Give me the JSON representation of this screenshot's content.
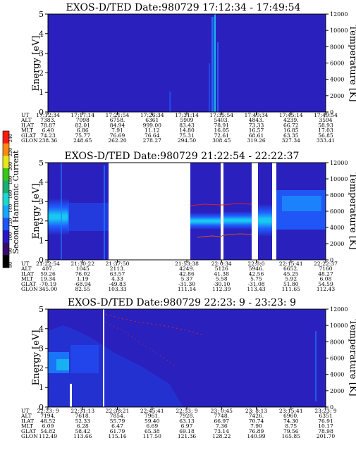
{
  "colorbar": {
    "label": "Second Harmonic Current",
    "ticks": [
      "80",
      "90",
      "100",
      "120",
      "140",
      "160",
      "180",
      "200",
      "220",
      "240"
    ],
    "colors": [
      "#000000",
      "#3a0a6e",
      "#2a18c8",
      "#1f55ff",
      "#17a8ff",
      "#19d9d0",
      "#18b070",
      "#38c818",
      "#e8e818",
      "#ff8a10",
      "#ff1a10"
    ]
  },
  "chart_data": [
    {
      "type": "heatmap",
      "title": "EXOS-D/TED   Date:980729   17:12:34 - 17:49:54",
      "ylabel": "Energy [eV]",
      "ylabel_right": "Temperature [K]",
      "ylim": [
        0,
        5
      ],
      "yticks": [
        "0",
        "1",
        "2",
        "3",
        "4",
        "5"
      ],
      "ylim_right": [
        0,
        12000
      ],
      "yticks_right": [
        "0",
        "2000",
        "4000",
        "6000",
        "8000",
        "10000",
        "12000"
      ],
      "row_labels": [
        "UT",
        "ALT",
        "ILAT",
        "MLT",
        "GLAT",
        "GLON"
      ],
      "columns": [
        {
          "pos": 0.0,
          "UT": "17:12:34",
          "ALT": "7383.",
          "ILAT": "78.87",
          "MLT": "6.40",
          "GLAT": "74.23",
          "GLON": "238.36"
        },
        {
          "pos": 0.125,
          "UT": "17:17:14",
          "ALT": "7098",
          "ILAT": "82.01",
          "MLT": "6.86",
          "GLAT": "75.77",
          "GLON": "248.65"
        },
        {
          "pos": 0.25,
          "UT": "17:21:54",
          "ALT": "6758.",
          "ILAT": "84.94",
          "MLT": "7.91",
          "GLAT": "76.69",
          "GLON": "262.20"
        },
        {
          "pos": 0.375,
          "UT": "17:26:34",
          "ALT": "6361",
          "ILAT": "999.00",
          "MLT": "11.12",
          "GLAT": "76.64",
          "GLON": "278.27"
        },
        {
          "pos": 0.5,
          "UT": "17:31:14",
          "ALT": "5909",
          "ILAT": "83.43",
          "MLT": "14.80",
          "GLAT": "75.31",
          "GLON": "294.50"
        },
        {
          "pos": 0.625,
          "UT": "17:35:54",
          "ALT": "5403.",
          "ILAT": "78.91",
          "MLT": "16.05",
          "GLAT": "72.61",
          "GLON": "308.45"
        },
        {
          "pos": 0.75,
          "UT": "17:40:34",
          "ALT": "4843.",
          "ILAT": "73.33",
          "MLT": "16.57",
          "GLAT": "68.61",
          "GLON": "319.26"
        },
        {
          "pos": 0.875,
          "UT": "17:45:14",
          "ALT": "4239.",
          "ILAT": "66.72",
          "MLT": "16.85",
          "GLAT": "63.35",
          "GLON": "327.34"
        },
        {
          "pos": 1.0,
          "UT": "17:49:54",
          "ALT": "3594",
          "ILAT": "58.93",
          "MLT": "17.03",
          "GLAT": "56.85",
          "GLON": "333.41"
        }
      ]
    },
    {
      "type": "heatmap",
      "title": "EXOS-D/TED   Date:980729   21:22:54 - 22:22:37",
      "ylabel": "Energy [eV]",
      "ylabel_right": "Temperature [K]",
      "ylim": [
        0,
        5
      ],
      "yticks": [
        "0",
        "1",
        "2",
        "3",
        "4",
        "5"
      ],
      "ylim_right": [
        0,
        12000
      ],
      "yticks_right": [
        "0",
        "2000",
        "4000",
        "6000",
        "8000",
        "10000",
        "12000"
      ],
      "row_labels": [
        "UT",
        "ALT",
        "ILAT",
        "MLT",
        "GLAT",
        "GLON"
      ],
      "columns": [
        {
          "pos": 0.0,
          "UT": "21:22:54",
          "ALT": "407.",
          "ILAT": "59.26",
          "MLT": "19.34",
          "GLAT": "-70.19",
          "GLON": "345.00"
        },
        {
          "pos": 0.125,
          "UT": "21:30:22",
          "ALT": "1045",
          "ILAT": "76.02",
          "MLT": "1.19",
          "GLAT": "-68.94",
          "GLON": "82.55"
        },
        {
          "pos": 0.25,
          "UT": "21:37:50",
          "ALT": "2113.",
          "ILAT": "63.57",
          "MLT": "4.33",
          "GLAT": "-49.83",
          "GLON": "103.33"
        },
        {
          "pos": 0.5,
          "UT": "21:53:38",
          "ALT": "4249.",
          "ILAT": "42.86",
          "MLT": "5.37",
          "GLAT": "-31.30",
          "GLON": "111.14"
        },
        {
          "pos": 0.625,
          "UT": "22:0:34",
          "ALT": "5126",
          "ILAT": "41.38",
          "MLT": "5.58",
          "GLAT": "-30.10",
          "GLON": "112.39"
        },
        {
          "pos": 0.75,
          "UT": "22:8:0",
          "ALT": "5946.",
          "ILAT": "42.56",
          "MLT": "5.75",
          "GLAT": "-31.08",
          "GLON": "113.43"
        },
        {
          "pos": 0.875,
          "UT": "22:15:41",
          "ALT": "6652.",
          "ILAT": "45.25",
          "MLT": "5.92",
          "GLAT": "51.80",
          "GLON": "111.65"
        },
        {
          "pos": 1.0,
          "UT": "22:22:37",
          "ALT": "7160",
          "ILAT": "48.27",
          "MLT": "6.08",
          "GLAT": "54.59",
          "GLON": "112.43"
        }
      ]
    },
    {
      "type": "heatmap",
      "title": "EXOS-D/TED   Date:980729   22:23: 9 - 23:23: 9",
      "ylabel": "Energy [eV]",
      "ylabel_right": "Temperature [K]",
      "ylim": [
        0,
        5
      ],
      "yticks": [
        "0",
        "1",
        "2",
        "3",
        "4",
        "5"
      ],
      "ylim_right": [
        0,
        12000
      ],
      "yticks_right": [
        "0",
        "2000",
        "4000",
        "6000",
        "8000",
        "10000",
        "12000"
      ],
      "row_labels": [
        "UT",
        "ALT",
        "ILAT",
        "MLT",
        "GLAT",
        "GLON"
      ],
      "columns": [
        {
          "pos": 0.0,
          "UT": "22:23: 9",
          "ALT": "7194.",
          "ILAT": "48.52",
          "MLT": "6.09",
          "GLAT": "54.82",
          "GLON": "112.49"
        },
        {
          "pos": 0.125,
          "UT": "22:31:13",
          "ALT": "7618.",
          "ILAT": "52.33",
          "MLT": "6.28",
          "GLAT": "58.42",
          "GLON": "113.66"
        },
        {
          "pos": 0.25,
          "UT": "22:38:21",
          "ALT": "7854.",
          "ILAT": "55.79",
          "MLT": "6.47",
          "GLAT": "61.79",
          "GLON": "115.16"
        },
        {
          "pos": 0.375,
          "UT": "22:45:41",
          "ALT": "7961.",
          "ILAT": "59.40",
          "MLT": "6.69",
          "GLAT": "65.38",
          "GLON": "117.50"
        },
        {
          "pos": 0.5,
          "UT": "22:53: 9",
          "ALT": "7928.",
          "ILAT": "63.13",
          "MLT": "6.97",
          "GLAT": "69.18",
          "GLON": "121.36"
        },
        {
          "pos": 0.625,
          "UT": "23: 0:45",
          "ALT": "7748.",
          "ILAT": "66.97",
          "MLT": "7.36",
          "GLAT": "73.14",
          "GLON": "128.22"
        },
        {
          "pos": 0.75,
          "UT": "23: 8:13",
          "ALT": "7426.",
          "ILAT": "70.74",
          "MLT": "7.90",
          "GLAT": "76.89",
          "GLON": "140.99"
        },
        {
          "pos": 0.875,
          "UT": "23:15:41",
          "ALT": "6960.",
          "ILAT": "74.30",
          "MLT": "8.75",
          "GLAT": "79.56",
          "GLON": "165.85"
        },
        {
          "pos": 1.0,
          "UT": "23:23: 9",
          "ALT": "6351",
          "ILAT": "76.91",
          "MLT": "10.17",
          "GLAT": "78.98",
          "GLON": "201.70"
        }
      ]
    }
  ]
}
